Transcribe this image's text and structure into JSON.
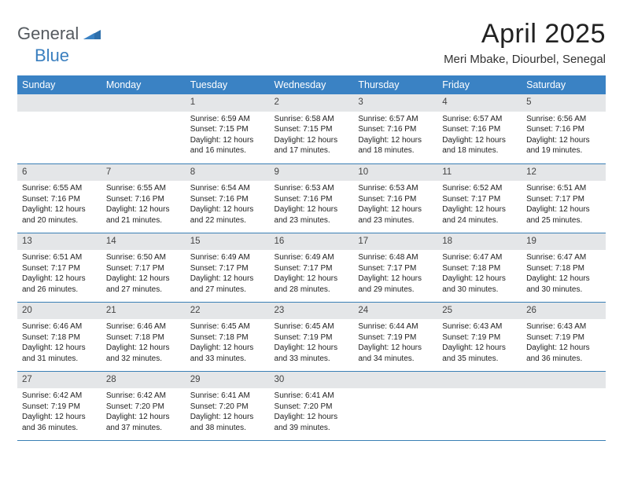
{
  "logo": {
    "word1": "General",
    "word2": "Blue"
  },
  "title": "April 2025",
  "subtitle": "Meri Mbake, Diourbel, Senegal",
  "colors": {
    "header_bg": "#3a82c4",
    "header_text": "#ffffff",
    "daynum_bg": "#e4e6e8",
    "row_border": "#3a7fb5",
    "logo_gray": "#555a5f",
    "logo_blue": "#3a7fbf"
  },
  "weekdays": [
    "Sunday",
    "Monday",
    "Tuesday",
    "Wednesday",
    "Thursday",
    "Friday",
    "Saturday"
  ],
  "weeks": [
    [
      null,
      null,
      {
        "n": "1",
        "sr": "6:59 AM",
        "ss": "7:15 PM",
        "dl": "12 hours and 16 minutes."
      },
      {
        "n": "2",
        "sr": "6:58 AM",
        "ss": "7:15 PM",
        "dl": "12 hours and 17 minutes."
      },
      {
        "n": "3",
        "sr": "6:57 AM",
        "ss": "7:16 PM",
        "dl": "12 hours and 18 minutes."
      },
      {
        "n": "4",
        "sr": "6:57 AM",
        "ss": "7:16 PM",
        "dl": "12 hours and 18 minutes."
      },
      {
        "n": "5",
        "sr": "6:56 AM",
        "ss": "7:16 PM",
        "dl": "12 hours and 19 minutes."
      }
    ],
    [
      {
        "n": "6",
        "sr": "6:55 AM",
        "ss": "7:16 PM",
        "dl": "12 hours and 20 minutes."
      },
      {
        "n": "7",
        "sr": "6:55 AM",
        "ss": "7:16 PM",
        "dl": "12 hours and 21 minutes."
      },
      {
        "n": "8",
        "sr": "6:54 AM",
        "ss": "7:16 PM",
        "dl": "12 hours and 22 minutes."
      },
      {
        "n": "9",
        "sr": "6:53 AM",
        "ss": "7:16 PM",
        "dl": "12 hours and 23 minutes."
      },
      {
        "n": "10",
        "sr": "6:53 AM",
        "ss": "7:16 PM",
        "dl": "12 hours and 23 minutes."
      },
      {
        "n": "11",
        "sr": "6:52 AM",
        "ss": "7:17 PM",
        "dl": "12 hours and 24 minutes."
      },
      {
        "n": "12",
        "sr": "6:51 AM",
        "ss": "7:17 PM",
        "dl": "12 hours and 25 minutes."
      }
    ],
    [
      {
        "n": "13",
        "sr": "6:51 AM",
        "ss": "7:17 PM",
        "dl": "12 hours and 26 minutes."
      },
      {
        "n": "14",
        "sr": "6:50 AM",
        "ss": "7:17 PM",
        "dl": "12 hours and 27 minutes."
      },
      {
        "n": "15",
        "sr": "6:49 AM",
        "ss": "7:17 PM",
        "dl": "12 hours and 27 minutes."
      },
      {
        "n": "16",
        "sr": "6:49 AM",
        "ss": "7:17 PM",
        "dl": "12 hours and 28 minutes."
      },
      {
        "n": "17",
        "sr": "6:48 AM",
        "ss": "7:17 PM",
        "dl": "12 hours and 29 minutes."
      },
      {
        "n": "18",
        "sr": "6:47 AM",
        "ss": "7:18 PM",
        "dl": "12 hours and 30 minutes."
      },
      {
        "n": "19",
        "sr": "6:47 AM",
        "ss": "7:18 PM",
        "dl": "12 hours and 30 minutes."
      }
    ],
    [
      {
        "n": "20",
        "sr": "6:46 AM",
        "ss": "7:18 PM",
        "dl": "12 hours and 31 minutes."
      },
      {
        "n": "21",
        "sr": "6:46 AM",
        "ss": "7:18 PM",
        "dl": "12 hours and 32 minutes."
      },
      {
        "n": "22",
        "sr": "6:45 AM",
        "ss": "7:18 PM",
        "dl": "12 hours and 33 minutes."
      },
      {
        "n": "23",
        "sr": "6:45 AM",
        "ss": "7:19 PM",
        "dl": "12 hours and 33 minutes."
      },
      {
        "n": "24",
        "sr": "6:44 AM",
        "ss": "7:19 PM",
        "dl": "12 hours and 34 minutes."
      },
      {
        "n": "25",
        "sr": "6:43 AM",
        "ss": "7:19 PM",
        "dl": "12 hours and 35 minutes."
      },
      {
        "n": "26",
        "sr": "6:43 AM",
        "ss": "7:19 PM",
        "dl": "12 hours and 36 minutes."
      }
    ],
    [
      {
        "n": "27",
        "sr": "6:42 AM",
        "ss": "7:19 PM",
        "dl": "12 hours and 36 minutes."
      },
      {
        "n": "28",
        "sr": "6:42 AM",
        "ss": "7:20 PM",
        "dl": "12 hours and 37 minutes."
      },
      {
        "n": "29",
        "sr": "6:41 AM",
        "ss": "7:20 PM",
        "dl": "12 hours and 38 minutes."
      },
      {
        "n": "30",
        "sr": "6:41 AM",
        "ss": "7:20 PM",
        "dl": "12 hours and 39 minutes."
      },
      null,
      null,
      null
    ]
  ],
  "labels": {
    "sunrise": "Sunrise:",
    "sunset": "Sunset:",
    "daylight": "Daylight:"
  }
}
